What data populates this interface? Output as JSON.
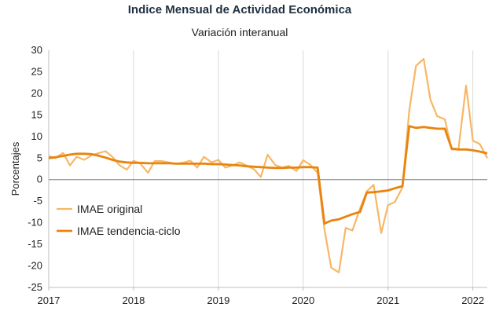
{
  "chart_data": {
    "type": "line",
    "title": "Indice Mensual de  Actividad Económica",
    "subtitle": "Variación interanual",
    "xlabel": "",
    "ylabel": "Porcentajes",
    "ylim": [
      -25,
      30
    ],
    "yticks": [
      30,
      25,
      20,
      15,
      10,
      5,
      0,
      -5,
      -10,
      -15,
      -20,
      -25
    ],
    "xlim": [
      2017,
      2022.17
    ],
    "xticks": [
      2017,
      2018,
      2019,
      2020,
      2021,
      2022
    ],
    "grid": "vertical",
    "legend_position": "middle-left",
    "series": [
      {
        "name": "IMAE original",
        "color": "#f7b766",
        "x": [
          2017.0,
          2017.08,
          2017.17,
          2017.25,
          2017.33,
          2017.42,
          2017.5,
          2017.58,
          2017.67,
          2017.75,
          2017.83,
          2017.92,
          2018.0,
          2018.08,
          2018.17,
          2018.25,
          2018.33,
          2018.42,
          2018.5,
          2018.58,
          2018.67,
          2018.75,
          2018.83,
          2018.92,
          2019.0,
          2019.08,
          2019.17,
          2019.25,
          2019.33,
          2019.42,
          2019.5,
          2019.58,
          2019.67,
          2019.75,
          2019.83,
          2019.92,
          2020.0,
          2020.08,
          2020.17,
          2020.25,
          2020.33,
          2020.42,
          2020.5,
          2020.58,
          2020.67,
          2020.75,
          2020.83,
          2020.92,
          2021.0,
          2021.08,
          2021.17,
          2021.25,
          2021.33,
          2021.42,
          2021.5,
          2021.58,
          2021.67,
          2021.75,
          2021.83,
          2021.92,
          2022.0,
          2022.08,
          2022.17
        ],
        "values": [
          5.5,
          5.0,
          6.2,
          3.3,
          5.3,
          4.6,
          5.6,
          6.1,
          6.6,
          5.3,
          3.4,
          2.3,
          4.4,
          3.7,
          1.6,
          4.3,
          4.3,
          4.0,
          3.7,
          3.9,
          4.4,
          2.8,
          5.3,
          4.0,
          4.6,
          2.8,
          3.3,
          4.0,
          3.3,
          2.4,
          0.6,
          5.8,
          3.4,
          2.8,
          3.2,
          2.0,
          4.5,
          3.5,
          1.6,
          -11.5,
          -20.4,
          -21.5,
          -11.2,
          -11.8,
          -6.7,
          -2.7,
          -1.2,
          -12.4,
          -5.9,
          -5.2,
          -1.8,
          16.0,
          26.4,
          28.0,
          18.5,
          14.7,
          14.0,
          7.0,
          7.0,
          21.8,
          9.0,
          8.3,
          5.0
        ]
      },
      {
        "name": "IMAE tendencia-ciclo",
        "color": "#e8840f",
        "x": [
          2017.0,
          2017.08,
          2017.17,
          2017.25,
          2017.33,
          2017.42,
          2017.5,
          2017.58,
          2017.67,
          2017.75,
          2017.83,
          2017.92,
          2018.0,
          2018.08,
          2018.17,
          2018.25,
          2018.33,
          2018.42,
          2018.5,
          2018.58,
          2018.67,
          2018.75,
          2018.83,
          2018.92,
          2019.0,
          2019.08,
          2019.17,
          2019.25,
          2019.33,
          2019.42,
          2019.5,
          2019.58,
          2019.67,
          2019.75,
          2019.83,
          2019.92,
          2020.0,
          2020.08,
          2020.17,
          2020.25,
          2020.33,
          2020.42,
          2020.5,
          2020.58,
          2020.67,
          2020.75,
          2020.83,
          2020.92,
          2021.0,
          2021.08,
          2021.17,
          2021.25,
          2021.33,
          2021.42,
          2021.5,
          2021.58,
          2021.67,
          2021.75,
          2021.83,
          2021.92,
          2022.0,
          2022.08,
          2022.17
        ],
        "values": [
          5.0,
          5.2,
          5.5,
          5.8,
          6.0,
          6.0,
          5.9,
          5.6,
          5.1,
          4.6,
          4.2,
          4.0,
          3.9,
          3.9,
          3.8,
          3.8,
          3.8,
          3.8,
          3.7,
          3.7,
          3.7,
          3.7,
          3.7,
          3.6,
          3.6,
          3.5,
          3.4,
          3.3,
          3.1,
          3.0,
          2.9,
          2.8,
          2.7,
          2.7,
          2.8,
          2.8,
          2.9,
          2.9,
          2.8,
          -10.2,
          -9.5,
          -9.2,
          -8.6,
          -8.0,
          -7.5,
          -3.0,
          -2.9,
          -2.7,
          -2.5,
          -2.0,
          -1.5,
          12.4,
          12.0,
          12.2,
          12.0,
          11.8,
          11.8,
          7.2,
          7.0,
          7.0,
          6.8,
          6.5,
          6.1
        ]
      }
    ]
  }
}
